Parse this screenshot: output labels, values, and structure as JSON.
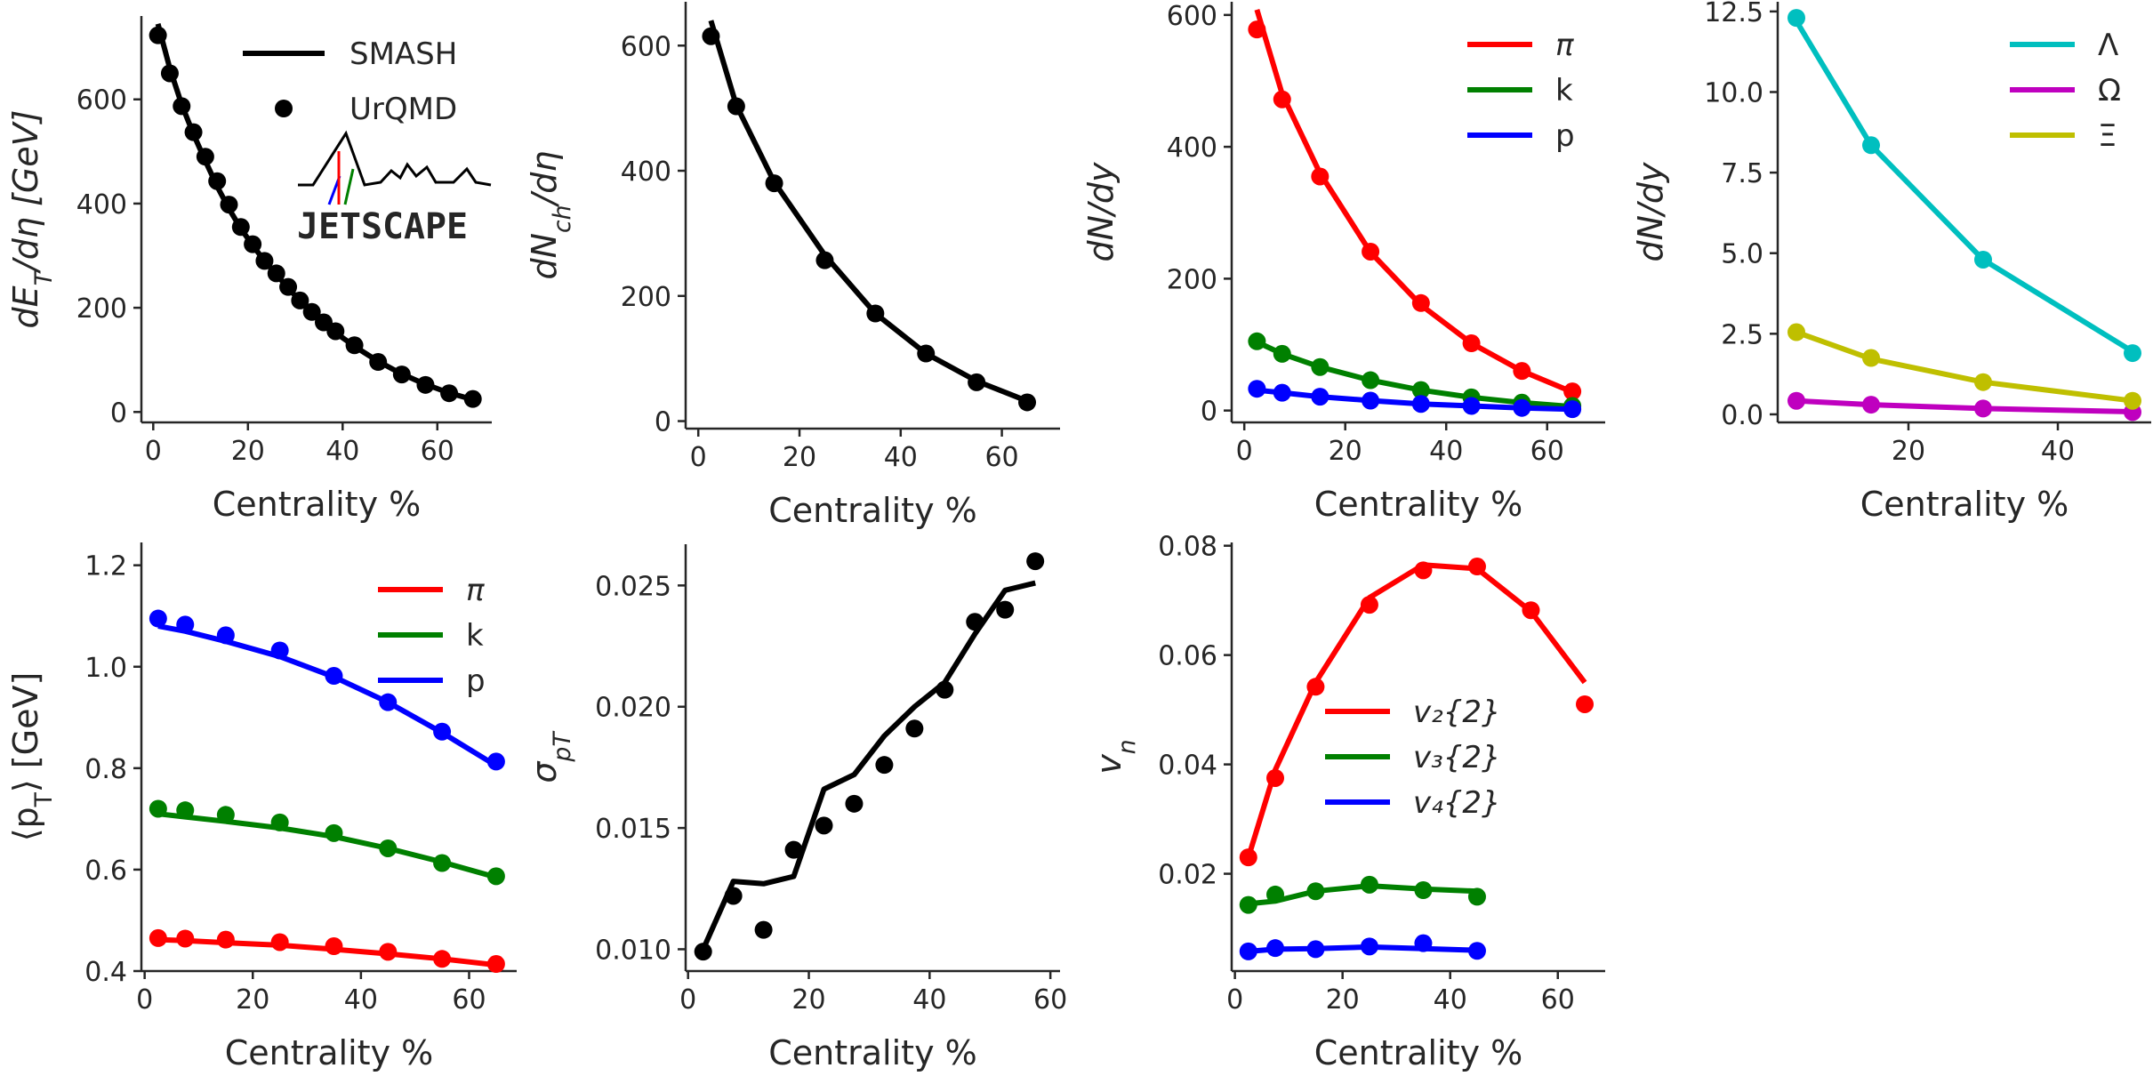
{
  "legend_common": {
    "model_label": "SMASH",
    "data_label": "UrQMD",
    "logo_text": "JETSCAPE"
  },
  "colors": {
    "black": "#000000",
    "red": "#ff0000",
    "green": "#008000",
    "blue": "#0000ff",
    "cyan": "#00bfbf",
    "magenta": "#bf00bf",
    "olive": "#bfbf00",
    "axis": "#262626"
  },
  "chart_data": [
    {
      "id": "et",
      "type": "line",
      "xlabel": "Centrality %",
      "ylabel": "dE_T/dη [GeV]",
      "xlim": [
        -2.5,
        71.5
      ],
      "ylim": [
        -20,
        760
      ],
      "xticks": [
        0,
        20,
        40,
        60
      ],
      "yticks": [
        0,
        200,
        400,
        600
      ],
      "xtick_labels": [
        "0",
        "20",
        "40",
        "60"
      ],
      "ytick_labels": [
        "0",
        "200",
        "400",
        "600"
      ],
      "legend": [
        "SMASH",
        "UrQMD"
      ],
      "series": [
        {
          "name": "SMASH",
          "color": "black",
          "line": {
            "x": [
              1,
              3.5,
              6,
              8.5,
              11,
              13.5,
              16,
              18.5,
              21,
              23.5,
              26,
              28.5,
              31,
              33.5,
              36,
              38.5,
              43,
              47,
              52,
              57,
              62,
              67
            ],
            "y": [
              745,
              660,
              590,
              533,
              482,
              433,
              390,
              352,
              320,
              290,
              264,
              238,
              213,
              190,
              170,
              152,
              123,
              100,
              75,
              55,
              38,
              25
            ]
          },
          "points": {
            "x": [
              1,
              3.5,
              6,
              8.5,
              11,
              13.5,
              16,
              18.5,
              21,
              23.5,
              26,
              28.5,
              31,
              33.5,
              36,
              38.5,
              42.5,
              47.5,
              52.5,
              57.5,
              62.5,
              67.5
            ],
            "y": [
              723,
              650,
              587,
              537,
              490,
              443,
              398,
              355,
              322,
              290,
              266,
              240,
              214,
              192,
              172,
              155,
              128,
              96,
              72,
              52,
              36,
              25
            ]
          }
        }
      ]
    },
    {
      "id": "nch",
      "type": "line",
      "xlabel": "Centrality %",
      "ylabel": "dN_ch/dη",
      "xlim": [
        -2.5,
        71.5
      ],
      "ylim": [
        -12,
        670
      ],
      "xticks": [
        0,
        20,
        40,
        60
      ],
      "yticks": [
        0,
        200,
        400,
        600
      ],
      "xtick_labels": [
        "0",
        "20",
        "40",
        "60"
      ],
      "ytick_labels": [
        "0",
        "200",
        "400",
        "600"
      ],
      "series": [
        {
          "name": "Nch",
          "color": "black",
          "line": {
            "x": [
              2.5,
              7.5,
              15,
              25,
              35,
              45,
              55,
              65
            ],
            "y": [
              640,
              505,
              382,
              265,
              172,
              108,
              64,
              32
            ]
          },
          "points": {
            "x": [
              2.5,
              7.5,
              15,
              25,
              35,
              45,
              55,
              65
            ],
            "y": [
              615,
              503,
              380,
              257,
              172,
              108,
              62,
              30
            ]
          }
        }
      ]
    },
    {
      "id": "yields",
      "type": "line",
      "xlabel": "Centrality %",
      "ylabel": "dN/dy",
      "xlim": [
        -2.5,
        71.5
      ],
      "ylim": [
        -18,
        620
      ],
      "xticks": [
        0,
        20,
        40,
        60
      ],
      "yticks": [
        0,
        200,
        400,
        600
      ],
      "xtick_labels": [
        "0",
        "20",
        "40",
        "60"
      ],
      "ytick_labels": [
        "0",
        "200",
        "400",
        "600"
      ],
      "legend": [
        "π",
        "k",
        "p"
      ],
      "series": [
        {
          "name": "π",
          "color": "red",
          "line": {
            "x": [
              2.5,
              7.5,
              15,
              25,
              35,
              45,
              55,
              65
            ],
            "y": [
              608,
              480,
              360,
              240,
              160,
              102,
              60,
              28
            ]
          },
          "points": {
            "x": [
              2.5,
              7.5,
              15,
              25,
              35,
              45,
              55,
              65
            ],
            "y": [
              578,
              472,
              355,
              241,
              163,
              102,
              60,
              29
            ]
          }
        },
        {
          "name": "k",
          "color": "green",
          "line": {
            "x": [
              2.5,
              7.5,
              15,
              25,
              35,
              45,
              55,
              65
            ],
            "y": [
              104,
              86,
              66,
              46,
              31,
              20,
              12,
              6
            ]
          },
          "points": {
            "x": [
              2.5,
              7.5,
              15,
              25,
              35,
              45,
              55,
              65
            ],
            "y": [
              105,
              86,
              66,
              46,
              31,
              20,
              12,
              7
            ]
          }
        },
        {
          "name": "p",
          "color": "blue",
          "line": {
            "x": [
              2.5,
              7.5,
              15,
              25,
              35,
              45,
              55,
              65
            ],
            "y": [
              31,
              27,
              21,
              15,
              10,
              7,
              4,
              2
            ]
          },
          "points": {
            "x": [
              2.5,
              7.5,
              15,
              25,
              35,
              45,
              55,
              65
            ],
            "y": [
              33,
              27,
              21,
              15,
              10,
              7,
              4,
              2
            ]
          }
        }
      ]
    },
    {
      "id": "strange",
      "type": "line",
      "xlabel": "Centrality %",
      "ylabel": "dN/dy",
      "xlim": [
        2.5,
        52.5
      ],
      "ylim": [
        -0.25,
        12.8
      ],
      "xticks": [
        20,
        40
      ],
      "yticks": [
        0,
        2.5,
        5,
        7.5,
        10,
        12.5
      ],
      "xtick_labels": [
        "20",
        "40"
      ],
      "ytick_labels": [
        "0.0",
        "2.5",
        "5.0",
        "7.5",
        "10.0",
        "12.5"
      ],
      "legend": [
        "Λ",
        "Ω",
        "Ξ"
      ],
      "series": [
        {
          "name": "Λ",
          "color": "cyan",
          "line": {
            "x": [
              5,
              15,
              30,
              50
            ],
            "y": [
              12.2,
              8.35,
              4.8,
              1.95
            ]
          },
          "points": {
            "x": [
              5,
              15,
              30,
              50
            ],
            "y": [
              12.3,
              8.35,
              4.8,
              1.9
            ]
          }
        },
        {
          "name": "Ω",
          "color": "magenta",
          "line": {
            "x": [
              5,
              15,
              30,
              50
            ],
            "y": [
              0.42,
              0.3,
              0.18,
              0.08
            ]
          },
          "points": {
            "x": [
              5,
              15,
              30,
              50
            ],
            "y": [
              0.42,
              0.3,
              0.18,
              0.07
            ]
          }
        },
        {
          "name": "Ξ",
          "color": "olive",
          "line": {
            "x": [
              5,
              15,
              30,
              50
            ],
            "y": [
              2.55,
              1.72,
              1.0,
              0.42
            ]
          },
          "points": {
            "x": [
              5,
              15,
              30,
              50
            ],
            "y": [
              2.55,
              1.75,
              1.0,
              0.42
            ]
          }
        }
      ]
    },
    {
      "id": "meanpt",
      "type": "line",
      "xlabel": "Centrality %",
      "ylabel": "⟨p_T⟩ [GeV]",
      "xlim": [
        -0.6,
        68.8
      ],
      "ylim": [
        0.4,
        1.245
      ],
      "xticks": [
        0,
        20,
        40,
        60
      ],
      "yticks": [
        0.4,
        0.6,
        0.8,
        1.0,
        1.2
      ],
      "xtick_labels": [
        "0",
        "20",
        "40",
        "60"
      ],
      "ytick_labels": [
        "0.4",
        "0.6",
        "0.8",
        "1.0",
        "1.2"
      ],
      "legend": [
        "π",
        "k",
        "p"
      ],
      "series": [
        {
          "name": "π",
          "color": "red",
          "line": {
            "x": [
              2.5,
              7.5,
              15,
              25,
              35,
              45,
              55,
              65
            ],
            "y": [
              0.462,
              0.46,
              0.456,
              0.451,
              0.443,
              0.434,
              0.424,
              0.412
            ]
          },
          "points": {
            "x": [
              2.5,
              7.5,
              15,
              25,
              35,
              45,
              55,
              65
            ],
            "y": [
              0.465,
              0.464,
              0.462,
              0.457,
              0.449,
              0.438,
              0.424,
              0.414
            ]
          }
        },
        {
          "name": "k",
          "color": "green",
          "line": {
            "x": [
              2.5,
              7.5,
              15,
              25,
              35,
              45,
              55,
              65
            ],
            "y": [
              0.71,
              0.704,
              0.695,
              0.682,
              0.665,
              0.642,
              0.615,
              0.585
            ]
          },
          "points": {
            "x": [
              2.5,
              7.5,
              15,
              25,
              35,
              45,
              55,
              65
            ],
            "y": [
              0.72,
              0.717,
              0.708,
              0.693,
              0.672,
              0.642,
              0.613,
              0.587
            ]
          }
        },
        {
          "name": "p",
          "color": "blue",
          "line": {
            "x": [
              2.5,
              7.5,
              15,
              25,
              35,
              45,
              55,
              65
            ],
            "y": [
              1.08,
              1.07,
              1.05,
              1.02,
              0.98,
              0.93,
              0.87,
              0.805
            ]
          },
          "points": {
            "x": [
              2.5,
              7.5,
              15,
              25,
              35,
              45,
              55,
              65
            ],
            "y": [
              1.095,
              1.083,
              1.062,
              1.032,
              0.982,
              0.93,
              0.872,
              0.813
            ]
          }
        }
      ]
    },
    {
      "id": "sigmapt",
      "type": "line",
      "xlabel": "Centrality %",
      "ylabel": "σ_{p_T}",
      "xlim": [
        -0.4,
        61.6
      ],
      "ylim": [
        0.0091,
        0.0267
      ],
      "xticks": [
        0,
        20,
        40,
        60
      ],
      "yticks": [
        0.01,
        0.015,
        0.02,
        0.025
      ],
      "xtick_labels": [
        "0",
        "20",
        "40",
        "60"
      ],
      "ytick_labels": [
        "0.010",
        "0.015",
        "0.020",
        "0.025"
      ],
      "series": [
        {
          "name": "σ",
          "color": "black",
          "line": {
            "x": [
              2.5,
              7.5,
              12.5,
              17.5,
              22.5,
              27.5,
              32.5,
              37.5,
              42.5,
              47.5,
              52.5,
              57.5
            ],
            "y": [
              0.01,
              0.0128,
              0.0127,
              0.013,
              0.0166,
              0.0172,
              0.0188,
              0.02,
              0.021,
              0.023,
              0.0248,
              0.0251
            ]
          },
          "points": {
            "x": [
              2.5,
              7.5,
              12.5,
              17.5,
              22.5,
              27.5,
              32.5,
              37.5,
              42.5,
              47.5,
              52.5,
              57.5
            ],
            "y": [
              0.0099,
              0.0122,
              0.0108,
              0.0141,
              0.0151,
              0.016,
              0.0176,
              0.0191,
              0.0207,
              0.0235,
              0.024,
              0.026
            ]
          }
        }
      ]
    },
    {
      "id": "vn",
      "type": "line",
      "xlabel": "Centrality %",
      "ylabel": "v_n",
      "xlim": [
        -0.6,
        68.8
      ],
      "ylim": [
        0.0022,
        0.0806
      ],
      "xticks": [
        0,
        20,
        40,
        60
      ],
      "yticks": [
        0.02,
        0.04,
        0.06,
        0.08
      ],
      "xtick_labels": [
        "0",
        "20",
        "40",
        "60"
      ],
      "ytick_labels": [
        "0.02",
        "0.04",
        "0.06",
        "0.08"
      ],
      "legend": [
        "v₂{2}",
        "v₃{2}",
        "v₄{2}"
      ],
      "series": [
        {
          "name": "v₂{2}",
          "color": "red",
          "line": {
            "x": [
              2.5,
              7.5,
              15,
              25,
              35,
              45,
              55,
              65
            ],
            "y": [
              0.023,
              0.039,
              0.055,
              0.0705,
              0.0765,
              0.0758,
              0.068,
              0.055
            ]
          },
          "points": {
            "x": [
              2.5,
              7.5,
              15,
              25,
              35,
              45,
              55,
              65
            ],
            "y": [
              0.023,
              0.0375,
              0.0542,
              0.0692,
              0.0755,
              0.0762,
              0.0682,
              0.051
            ]
          }
        },
        {
          "name": "v₃{2}",
          "color": "green",
          "line": {
            "x": [
              2.5,
              7.5,
              15,
              25,
              35,
              45
            ],
            "y": [
              0.0145,
              0.015,
              0.0168,
              0.0178,
              0.0172,
              0.0168
            ]
          },
          "points": {
            "x": [
              2.5,
              7.5,
              15,
              25,
              35,
              45
            ],
            "y": [
              0.0143,
              0.0162,
              0.0168,
              0.018,
              0.017,
              0.0158
            ]
          }
        },
        {
          "name": "v₄{2}",
          "color": "blue",
          "line": {
            "x": [
              2.5,
              7.5,
              15,
              25,
              35,
              45
            ],
            "y": [
              0.0058,
              0.0062,
              0.0063,
              0.0066,
              0.0063,
              0.006
            ]
          },
          "points": {
            "x": [
              2.5,
              7.5,
              15,
              25,
              35,
              45
            ],
            "y": [
              0.0058,
              0.0064,
              0.0062,
              0.0067,
              0.0073,
              0.0059
            ]
          }
        }
      ]
    }
  ]
}
